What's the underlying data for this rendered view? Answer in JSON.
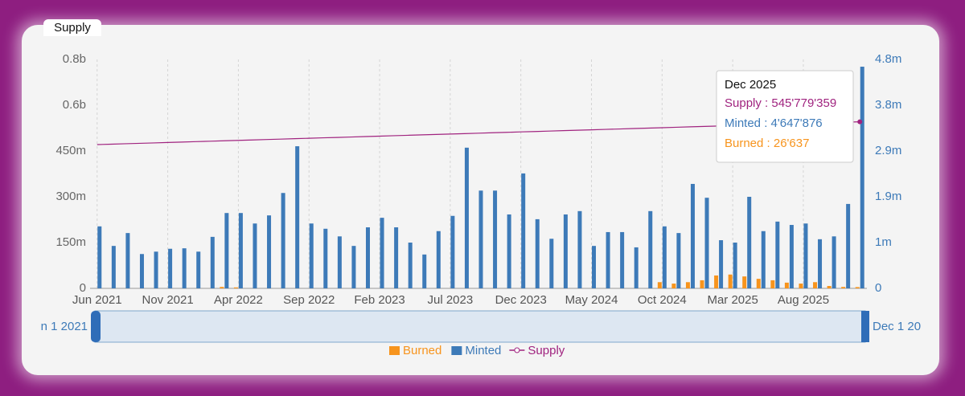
{
  "panel_title": "Supply",
  "chart_data": {
    "type": "bar",
    "categories": [
      "Jun 2021",
      null,
      null,
      null,
      null,
      "Nov 2021",
      null,
      null,
      null,
      null,
      "Apr 2022",
      null,
      null,
      null,
      null,
      "Sep 2022",
      null,
      null,
      null,
      null,
      "Feb 2023",
      null,
      null,
      null,
      null,
      "Jul 2023",
      null,
      null,
      null,
      null,
      "Dec 2023",
      null,
      null,
      null,
      null,
      "May 2024",
      null,
      null,
      null,
      null,
      "Oct 2024",
      null,
      null,
      null,
      null,
      "Mar 2025",
      null,
      null,
      null,
      null,
      "Aug 2025",
      null,
      null,
      null,
      null
    ],
    "series": [
      {
        "name": "Burned",
        "type": "bar",
        "axis": "y2",
        "color": "#f7941d",
        "values": [
          0,
          0,
          0,
          0,
          0,
          0,
          0,
          0,
          0,
          30000.0,
          20000.0,
          0,
          0,
          0,
          0,
          0,
          0,
          0,
          0,
          0,
          0,
          0,
          0,
          0,
          0,
          0,
          0,
          0,
          0,
          0,
          0,
          0,
          0,
          0,
          0,
          0,
          0,
          0,
          0,
          0,
          130000.0,
          100000.0,
          130000.0,
          170000.0,
          270000.0,
          290000.0,
          250000.0,
          200000.0,
          170000.0,
          120000.0,
          100000.0,
          130000.0,
          50000.0,
          30000.0,
          26637
        ]
      },
      {
        "name": "Minted",
        "type": "bar",
        "axis": "y2",
        "color": "#3d7ab8",
        "values": [
          1300000.0,
          890000.0,
          1160000.0,
          720000.0,
          770000.0,
          830000.0,
          840000.0,
          770000.0,
          1080000.0,
          1580000.0,
          1580000.0,
          1360000.0,
          1530000.0,
          2000000.0,
          2980000.0,
          1360000.0,
          1250000.0,
          1090000.0,
          890000.0,
          1280000.0,
          1480000.0,
          1280000.0,
          960000.0,
          710000.0,
          1200000.0,
          1520000.0,
          2950000.0,
          2050000.0,
          2050000.0,
          1550000.0,
          2410000.0,
          1450000.0,
          1040000.0,
          1550000.0,
          1620000.0,
          890000.0,
          1180000.0,
          1180000.0,
          860000.0,
          1620000.0,
          1300000.0,
          1160000.0,
          2190000.0,
          1900000.0,
          1010000.0,
          960000.0,
          1920000.0,
          1200000.0,
          1400000.0,
          1330000.0,
          1360000.0,
          1030000.0,
          1090000.0,
          1770000.0,
          4647876
        ]
      },
      {
        "name": "Supply",
        "type": "line",
        "axis": "y",
        "color": "#a0237f",
        "values": [
          471000000.0,
          472400000.0,
          473800000.0,
          475200000.0,
          476500000.0,
          477900000.0,
          479300000.0,
          480700000.0,
          482100000.0,
          483500000.0,
          484900000.0,
          486200000.0,
          487600000.0,
          489000000.0,
          490400000.0,
          491800000.0,
          493200000.0,
          494500000.0,
          495900000.0,
          497300000.0,
          498700000.0,
          500100000.0,
          501500000.0,
          502900000.0,
          504200000.0,
          505600000.0,
          507000000.0,
          508400000.0,
          509800000.0,
          511200000.0,
          512600000.0,
          513900000.0,
          515300000.0,
          516700000.0,
          518100000.0,
          519500000.0,
          520900000.0,
          522200000.0,
          523600000.0,
          525000000.0,
          526400000.0,
          527800000.0,
          529200000.0,
          530600000.0,
          531900000.0,
          533300000.0,
          534700000.0,
          536100000.0,
          537500000.0,
          538900000.0,
          540200000.0,
          541600000.0,
          543000000.0,
          544400000.0,
          545779359
        ]
      }
    ],
    "ylim": [
      0,
      750000000
    ],
    "yticks": [
      0,
      {
        "value": 150000000,
        "label": "150m"
      },
      {
        "value": 300000000,
        "label": "300m"
      },
      {
        "value": 450000000,
        "label": "450m"
      },
      {
        "value": 600000000,
        "label": "0.6b"
      },
      {
        "value": 750000000,
        "label": "0.8b"
      }
    ],
    "y2lim": [
      0,
      4800000
    ],
    "y2ticks": [
      0,
      {
        "value": 960000,
        "label": "1m"
      },
      {
        "value": 1920000,
        "label": "1.9m"
      },
      {
        "value": 2880000,
        "label": "2.9m"
      },
      {
        "value": 3840000,
        "label": "3.8m"
      },
      {
        "value": 4800000,
        "label": "4.8m"
      }
    ],
    "x_grid": true,
    "legend": "bottom",
    "tooltip": {
      "title": "Dec 2025",
      "lines": [
        "Supply : 545'779'359",
        "Minted : 4'647'876",
        "Burned : 26'637"
      ]
    },
    "zoom": {
      "start_label": "n 1 2021",
      "end_label": "Dec 1 20"
    }
  }
}
